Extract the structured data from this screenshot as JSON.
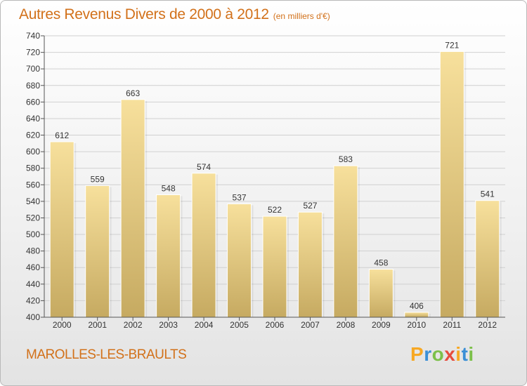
{
  "title": "Autres Revenus Divers de 2000 à 2012",
  "unit_note": "(en milliers d'€)",
  "town": "MAROLLES-LES-BRAULTS",
  "logo": {
    "letters": [
      "P",
      "r",
      "o",
      "x",
      "i",
      "t",
      "i"
    ],
    "colors": [
      "#f7a823",
      "#3a8fd6",
      "#7cc04a",
      "#e64b3c",
      "#f7a823",
      "#3a8fd6",
      "#7cc04a"
    ]
  },
  "colors": {
    "accent": "#d2711a",
    "bar_light": "#f7e09c",
    "bar_dark": "#c6aa61",
    "grid": "#d0d0d0"
  },
  "chart_data": {
    "type": "bar",
    "categories": [
      "2000",
      "2001",
      "2002",
      "2003",
      "2004",
      "2005",
      "2006",
      "2007",
      "2008",
      "2009",
      "2010",
      "2011",
      "2012"
    ],
    "values": [
      612,
      559,
      663,
      548,
      574,
      537,
      522,
      527,
      583,
      458,
      406,
      721,
      541
    ],
    "ylim": [
      400,
      740
    ],
    "yticks": [
      400,
      420,
      440,
      460,
      480,
      500,
      520,
      540,
      560,
      580,
      600,
      620,
      640,
      660,
      680,
      700,
      720,
      740
    ],
    "grid": true
  }
}
